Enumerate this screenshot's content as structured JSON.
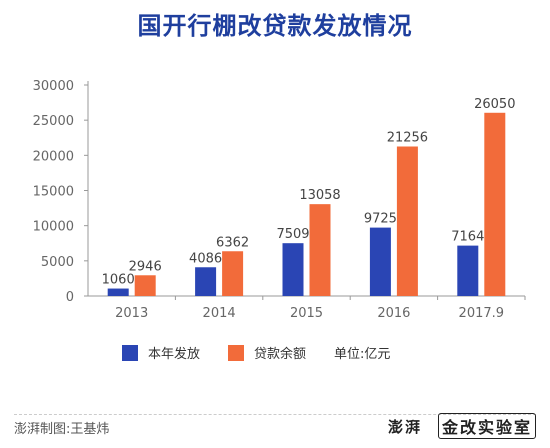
{
  "title": "国开行棚改贷款发放情况",
  "legend": {
    "series_a": "本年发放",
    "series_b": "贷款余额",
    "unit": "单位:亿元"
  },
  "footer": {
    "credit": "澎湃制图:王基炜",
    "logo_mark": "澎湃",
    "logo_text": "金改实验室"
  },
  "colors": {
    "series_a": "#2a45b4",
    "series_b": "#f26b3a",
    "axis_text": "#666666",
    "axis_line": "#999999"
  },
  "chart_data": {
    "type": "bar",
    "title": "国开行棚改贷款发放情况",
    "categories": [
      "2013",
      "2014",
      "2015",
      "2016",
      "2017.9"
    ],
    "series": [
      {
        "name": "本年发放",
        "values": [
          1060,
          4086,
          7509,
          9725,
          7164
        ]
      },
      {
        "name": "贷款余额",
        "values": [
          2946,
          6362,
          13058,
          21256,
          26050
        ]
      }
    ],
    "yticks": [
      "0",
      "5000",
      "10000",
      "15000",
      "20000",
      "25000",
      "30000"
    ],
    "ylim": [
      0,
      30000
    ],
    "grid": false,
    "legend_position": "bottom",
    "xlabel": "",
    "ylabel": ""
  }
}
